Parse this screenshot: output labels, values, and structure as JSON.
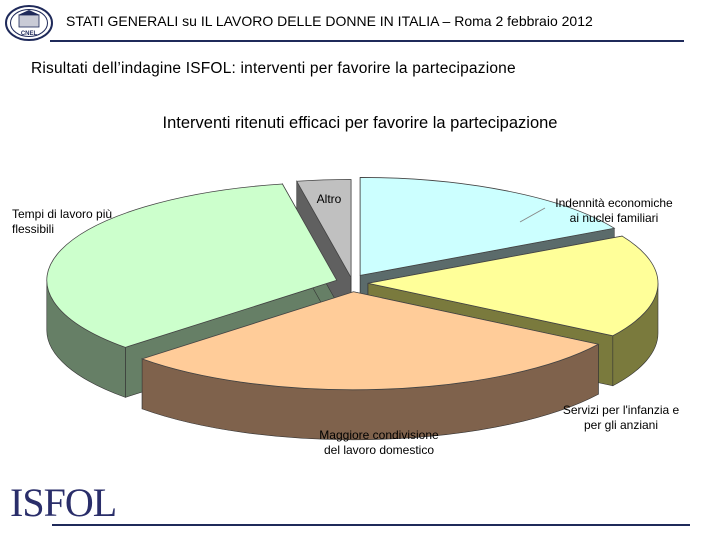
{
  "header": {
    "title": "STATI GENERALI su IL LAVORO DELLE DONNE IN ITALIA – Roma 2 febbraio 2012",
    "seal_text": "CNEL",
    "accent_color": "#1f2a5a"
  },
  "subtitle": "Risultati dell’indagine ISFOL: interventi per favorire la partecipazione",
  "footer": {
    "logo_text": "ISFOL"
  },
  "chart_data": {
    "type": "pie",
    "title": "Interventi ritenuti efficaci per favorire la partecipazione",
    "style": "3d-exploded",
    "slices": [
      {
        "label_lines": [
          "Indennità economiche",
          "ai nuclei familiari"
        ],
        "value": 17,
        "color": "#ccffff",
        "side_color": "#5b6b6b"
      },
      {
        "label_lines": [
          "Servizi per l'infanzia e",
          "per gli anziani"
        ],
        "value": 17,
        "color": "#ffff99",
        "side_color": "#7a7a3d"
      },
      {
        "label_lines": [
          "Maggiore condivisione",
          "del lavoro domestico"
        ],
        "value": 29,
        "color": "#ffcc99",
        "side_color": "#7f624c"
      },
      {
        "label_lines": [
          "Tempi di lavoro più",
          "flessibili"
        ],
        "value": 34,
        "color": "#ccffcc",
        "side_color": "#667f66"
      },
      {
        "label_lines": [
          "Altro"
        ],
        "value": 3,
        "color": "#c0c0c0",
        "side_color": "#606060"
      }
    ]
  }
}
